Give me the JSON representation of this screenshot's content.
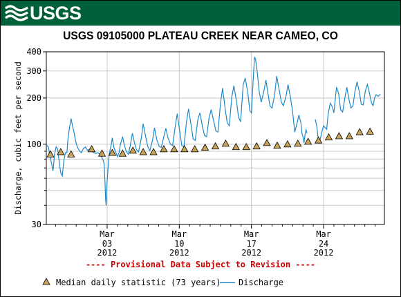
{
  "header": {
    "logo_text": "USGS",
    "logo_icon": "usgs-wave-icon",
    "banner_color": "#00603a"
  },
  "chart_data": {
    "type": "line",
    "title": "USGS 09105000 PLATEAU CREEK NEAR CAMEO, CO",
    "ylabel": "Discharge, cubic feet per second",
    "yscale": "log",
    "ylim": [
      30,
      400
    ],
    "y_tick_labels": [
      "400",
      "300",
      "200",
      "100",
      "30"
    ],
    "x_tick_labels": [
      {
        "month": "Mar",
        "day": "03",
        "year": "2012"
      },
      {
        "month": "Mar",
        "day": "10",
        "year": "2012"
      },
      {
        "month": "Mar",
        "day": "17",
        "year": "2012"
      },
      {
        "month": "Mar",
        "day": "24",
        "year": "2012"
      }
    ],
    "x_tick_days": [
      3,
      10,
      17,
      24
    ],
    "xlim_days": [
      -2.9,
      29.9
    ],
    "grid": true,
    "provisional_note": "---- Provisional Data Subject to Revision ----",
    "provisional_color": "#cc0000",
    "series": [
      {
        "name": "Discharge",
        "color": "#1e88c9",
        "kind": "line",
        "points": [
          [
            -2.9,
            99
          ],
          [
            -2.7,
            96
          ],
          [
            -2.55,
            84
          ],
          [
            -2.4,
            75
          ],
          [
            -2.25,
            67
          ],
          [
            -2.1,
            86
          ],
          [
            -1.95,
            96
          ],
          [
            -1.8,
            93
          ],
          [
            -1.6,
            72
          ],
          [
            -1.5,
            65
          ],
          [
            -1.35,
            62
          ],
          [
            -1.2,
            78
          ],
          [
            -1.05,
            88
          ],
          [
            -0.9,
            88
          ],
          [
            -0.8,
            108
          ],
          [
            -0.65,
            128
          ],
          [
            -0.5,
            147
          ],
          [
            -0.35,
            131
          ],
          [
            -0.2,
            118
          ],
          [
            -0.1,
            108
          ],
          [
            0.1,
            96
          ],
          [
            0.3,
            91
          ],
          [
            0.5,
            88
          ],
          [
            0.7,
            94
          ],
          [
            0.9,
            96
          ],
          [
            1.1,
            91
          ],
          [
            1.3,
            93
          ],
          [
            1.5,
            90
          ],
          [
            1.7,
            88
          ],
          [
            1.9,
            87
          ],
          [
            2.1,
            88
          ],
          [
            2.3,
            86
          ],
          [
            2.5,
            82
          ],
          [
            2.6,
            79
          ],
          [
            2.7,
            75
          ],
          [
            2.8,
            55
          ],
          [
            2.85,
            44
          ],
          [
            2.9,
            40
          ],
          [
            2.95,
            48
          ],
          [
            3.0,
            58
          ],
          [
            3.1,
            72
          ],
          [
            3.2,
            86
          ],
          [
            3.35,
            96
          ],
          [
            3.5,
            110
          ],
          [
            3.65,
            95
          ],
          [
            3.8,
            90
          ],
          [
            4.0,
            83
          ],
          [
            4.15,
            88
          ],
          [
            4.3,
            100
          ],
          [
            4.5,
            112
          ],
          [
            4.65,
            100
          ],
          [
            4.85,
            90
          ],
          [
            5.05,
            86
          ],
          [
            5.25,
            98
          ],
          [
            5.45,
            118
          ],
          [
            5.65,
            102
          ],
          [
            5.85,
            92
          ],
          [
            6.05,
            89
          ],
          [
            6.3,
            108
          ],
          [
            6.5,
            136
          ],
          [
            6.7,
            115
          ],
          [
            6.95,
            96
          ],
          [
            7.15,
            91
          ],
          [
            7.4,
            106
          ],
          [
            7.6,
            128
          ],
          [
            7.8,
            108
          ],
          [
            8.05,
            97
          ],
          [
            8.25,
            95
          ],
          [
            8.5,
            112
          ],
          [
            8.7,
            127
          ],
          [
            8.9,
            110
          ],
          [
            9.15,
            100
          ],
          [
            9.35,
            98
          ],
          [
            9.6,
            130
          ],
          [
            9.8,
            158
          ],
          [
            10.05,
            120
          ],
          [
            10.25,
            98
          ],
          [
            10.45,
            96
          ],
          [
            10.7,
            140
          ],
          [
            10.9,
            170
          ],
          [
            11.15,
            132
          ],
          [
            11.35,
            108
          ],
          [
            11.55,
            106
          ],
          [
            11.8,
            145
          ],
          [
            12.0,
            160
          ],
          [
            12.25,
            130
          ],
          [
            12.45,
            114
          ],
          [
            12.65,
            112
          ],
          [
            12.9,
            150
          ],
          [
            13.1,
            168
          ],
          [
            13.35,
            140
          ],
          [
            13.55,
            122
          ],
          [
            13.75,
            120
          ],
          [
            14.0,
            185
          ],
          [
            14.2,
            232
          ],
          [
            14.45,
            170
          ],
          [
            14.65,
            138
          ],
          [
            14.85,
            132
          ],
          [
            15.1,
            205
          ],
          [
            15.3,
            240
          ],
          [
            15.55,
            190
          ],
          [
            15.75,
            150
          ],
          [
            15.95,
            140
          ],
          [
            16.2,
            245
          ],
          [
            16.4,
            270
          ],
          [
            16.65,
            215
          ],
          [
            16.85,
            165
          ],
          [
            17.0,
            160
          ],
          [
            17.15,
            250
          ],
          [
            17.3,
            370
          ],
          [
            17.4,
            358
          ],
          [
            17.55,
            300
          ],
          [
            17.75,
            220
          ],
          [
            17.95,
            188
          ],
          [
            18.2,
            220
          ],
          [
            18.4,
            262
          ],
          [
            18.6,
            215
          ],
          [
            18.8,
            178
          ],
          [
            19.0,
            172
          ],
          [
            19.25,
            210
          ],
          [
            19.45,
            278
          ],
          [
            19.7,
            225
          ],
          [
            19.9,
            188
          ],
          [
            20.1,
            178
          ],
          [
            20.35,
            205
          ],
          [
            20.55,
            245
          ],
          [
            20.8,
            200
          ],
          [
            21.0,
            162
          ],
          [
            21.2,
            120
          ],
          [
            21.4,
            135
          ],
          [
            21.6,
            155
          ],
          [
            21.8,
            138
          ],
          [
            21.9,
            118
          ],
          [
            22.0,
            112
          ],
          [
            22.1,
            102
          ],
          [
            22.2,
            115
          ],
          [
            22.3,
            124
          ],
          [
            22.4,
            118
          ]
        ],
        "points_2": [
          [
            23.2,
            145
          ],
          [
            23.35,
            130
          ],
          [
            23.5,
            105
          ],
          [
            23.6,
            102
          ],
          [
            23.7,
            110
          ],
          [
            23.85,
            122
          ],
          [
            24.0,
            132
          ],
          [
            24.15,
            128
          ],
          [
            24.3,
            125
          ],
          [
            24.45,
            158
          ],
          [
            24.65,
            185
          ],
          [
            24.85,
            175
          ],
          [
            25.0,
            160
          ],
          [
            25.25,
            235
          ],
          [
            25.45,
            215
          ],
          [
            25.65,
            168
          ],
          [
            25.85,
            162
          ],
          [
            26.05,
            198
          ],
          [
            26.25,
            235
          ],
          [
            26.45,
            198
          ],
          [
            26.65,
            172
          ],
          [
            26.85,
            178
          ],
          [
            27.05,
            222
          ],
          [
            27.25,
            255
          ],
          [
            27.45,
            222
          ],
          [
            27.65,
            182
          ],
          [
            27.85,
            180
          ],
          [
            28.05,
            222
          ],
          [
            28.25,
            245
          ],
          [
            28.45,
            215
          ],
          [
            28.65,
            185
          ],
          [
            28.8,
            178
          ],
          [
            28.95,
            200
          ],
          [
            29.1,
            210
          ],
          [
            29.3,
            205
          ],
          [
            29.5,
            212
          ]
        ]
      },
      {
        "name": "Median daily statistic (73 years)",
        "color": "#c8a35a",
        "kind": "triangle",
        "points": [
          [
            -2.5,
            86
          ],
          [
            -1.5,
            89
          ],
          [
            -0.5,
            86
          ],
          [
            1.5,
            93
          ],
          [
            2.5,
            87
          ],
          [
            3.5,
            88
          ],
          [
            4.5,
            87
          ],
          [
            5.5,
            91
          ],
          [
            6.5,
            89
          ],
          [
            7.5,
            89
          ],
          [
            8.5,
            93
          ],
          [
            9.5,
            93
          ],
          [
            10.5,
            93
          ],
          [
            11.5,
            93
          ],
          [
            12.5,
            95
          ],
          [
            13.5,
            97
          ],
          [
            14.5,
            101
          ],
          [
            15.5,
            96
          ],
          [
            16.5,
            96
          ],
          [
            17.5,
            97
          ],
          [
            18.5,
            102
          ],
          [
            19.5,
            98
          ],
          [
            20.5,
            100
          ],
          [
            21.5,
            101
          ],
          [
            22.5,
            104
          ],
          [
            23.5,
            106
          ],
          [
            24.5,
            111
          ],
          [
            25.5,
            113
          ],
          [
            26.5,
            113
          ],
          [
            27.5,
            120
          ],
          [
            28.5,
            121
          ]
        ]
      }
    ]
  },
  "legend": {
    "median_label": "Median daily statistic (73 years)",
    "discharge_label": "Discharge"
  }
}
